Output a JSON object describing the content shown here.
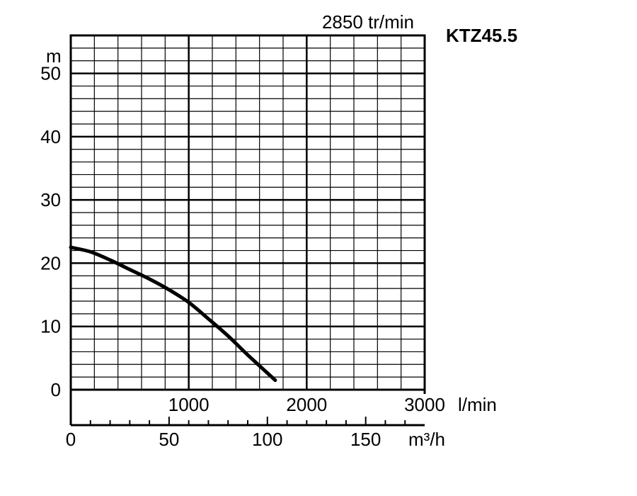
{
  "chart_data": {
    "type": "line",
    "title": "KTZ45.5",
    "subtitle": "2850 tr/min",
    "ylabel": "m",
    "ylim": [
      0,
      56
    ],
    "xlim_lmin": [
      0,
      3000
    ],
    "xlim_m3h": [
      0,
      180
    ],
    "grid": true,
    "y_ticks": [
      "0",
      "10",
      "20",
      "30",
      "40",
      "50"
    ],
    "x_ticks_lmin": [
      "1000",
      "2000",
      "3000"
    ],
    "x_unit_lmin": "l/min",
    "x_ticks_m3h": [
      "0",
      "50",
      "100",
      "150"
    ],
    "x_unit_m3h": "m³/h",
    "series": [
      {
        "x": [
          0,
          10,
          20,
          30,
          40,
          50,
          60,
          70,
          80,
          90,
          104
        ],
        "y": [
          22.5,
          21.8,
          20.5,
          19.0,
          17.5,
          15.8,
          13.8,
          11.2,
          8.5,
          5.5,
          1.5
        ]
      }
    ]
  }
}
